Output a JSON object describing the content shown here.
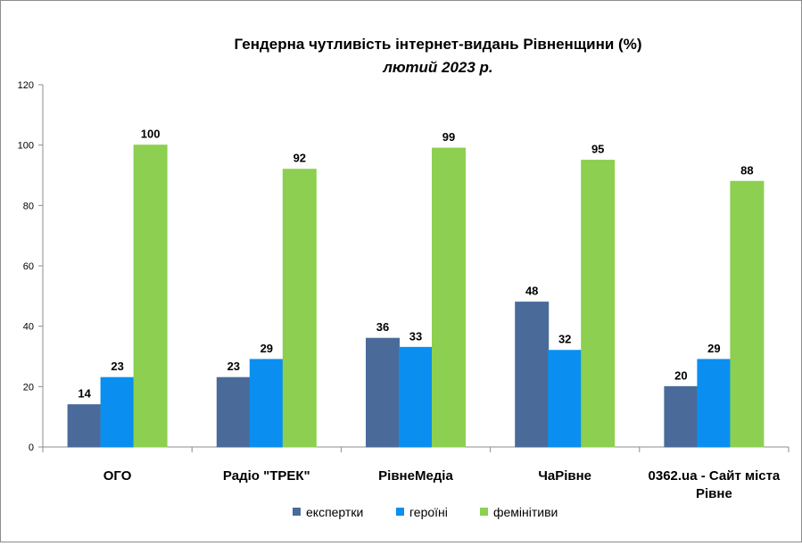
{
  "chart_data": {
    "type": "bar",
    "title": "Гендерна чутливість інтернет-видань Рівненщини (%)",
    "subtitle": "лютий 2023 р.",
    "xlabel": "",
    "ylabel": "",
    "ylim": [
      0,
      120
    ],
    "yticks": [
      0,
      20,
      40,
      60,
      80,
      100,
      120
    ],
    "grid": false,
    "legend_position": "bottom",
    "categories": [
      [
        "ОГО"
      ],
      [
        "Радіо \"ТРЕК\""
      ],
      [
        "РівнеМедіа"
      ],
      [
        "ЧаРівне"
      ],
      [
        "0362.ua - Сайт міста",
        "Рівне"
      ]
    ],
    "series": [
      {
        "name": "експертки",
        "color": "#4a6b9a",
        "values": [
          14,
          23,
          36,
          48,
          20
        ]
      },
      {
        "name": "героїні",
        "color": "#0a8ff0",
        "values": [
          23,
          29,
          33,
          32,
          29
        ]
      },
      {
        "name": "фемінітиви",
        "color": "#8dcf50",
        "values": [
          100,
          92,
          99,
          95,
          88
        ]
      }
    ]
  }
}
